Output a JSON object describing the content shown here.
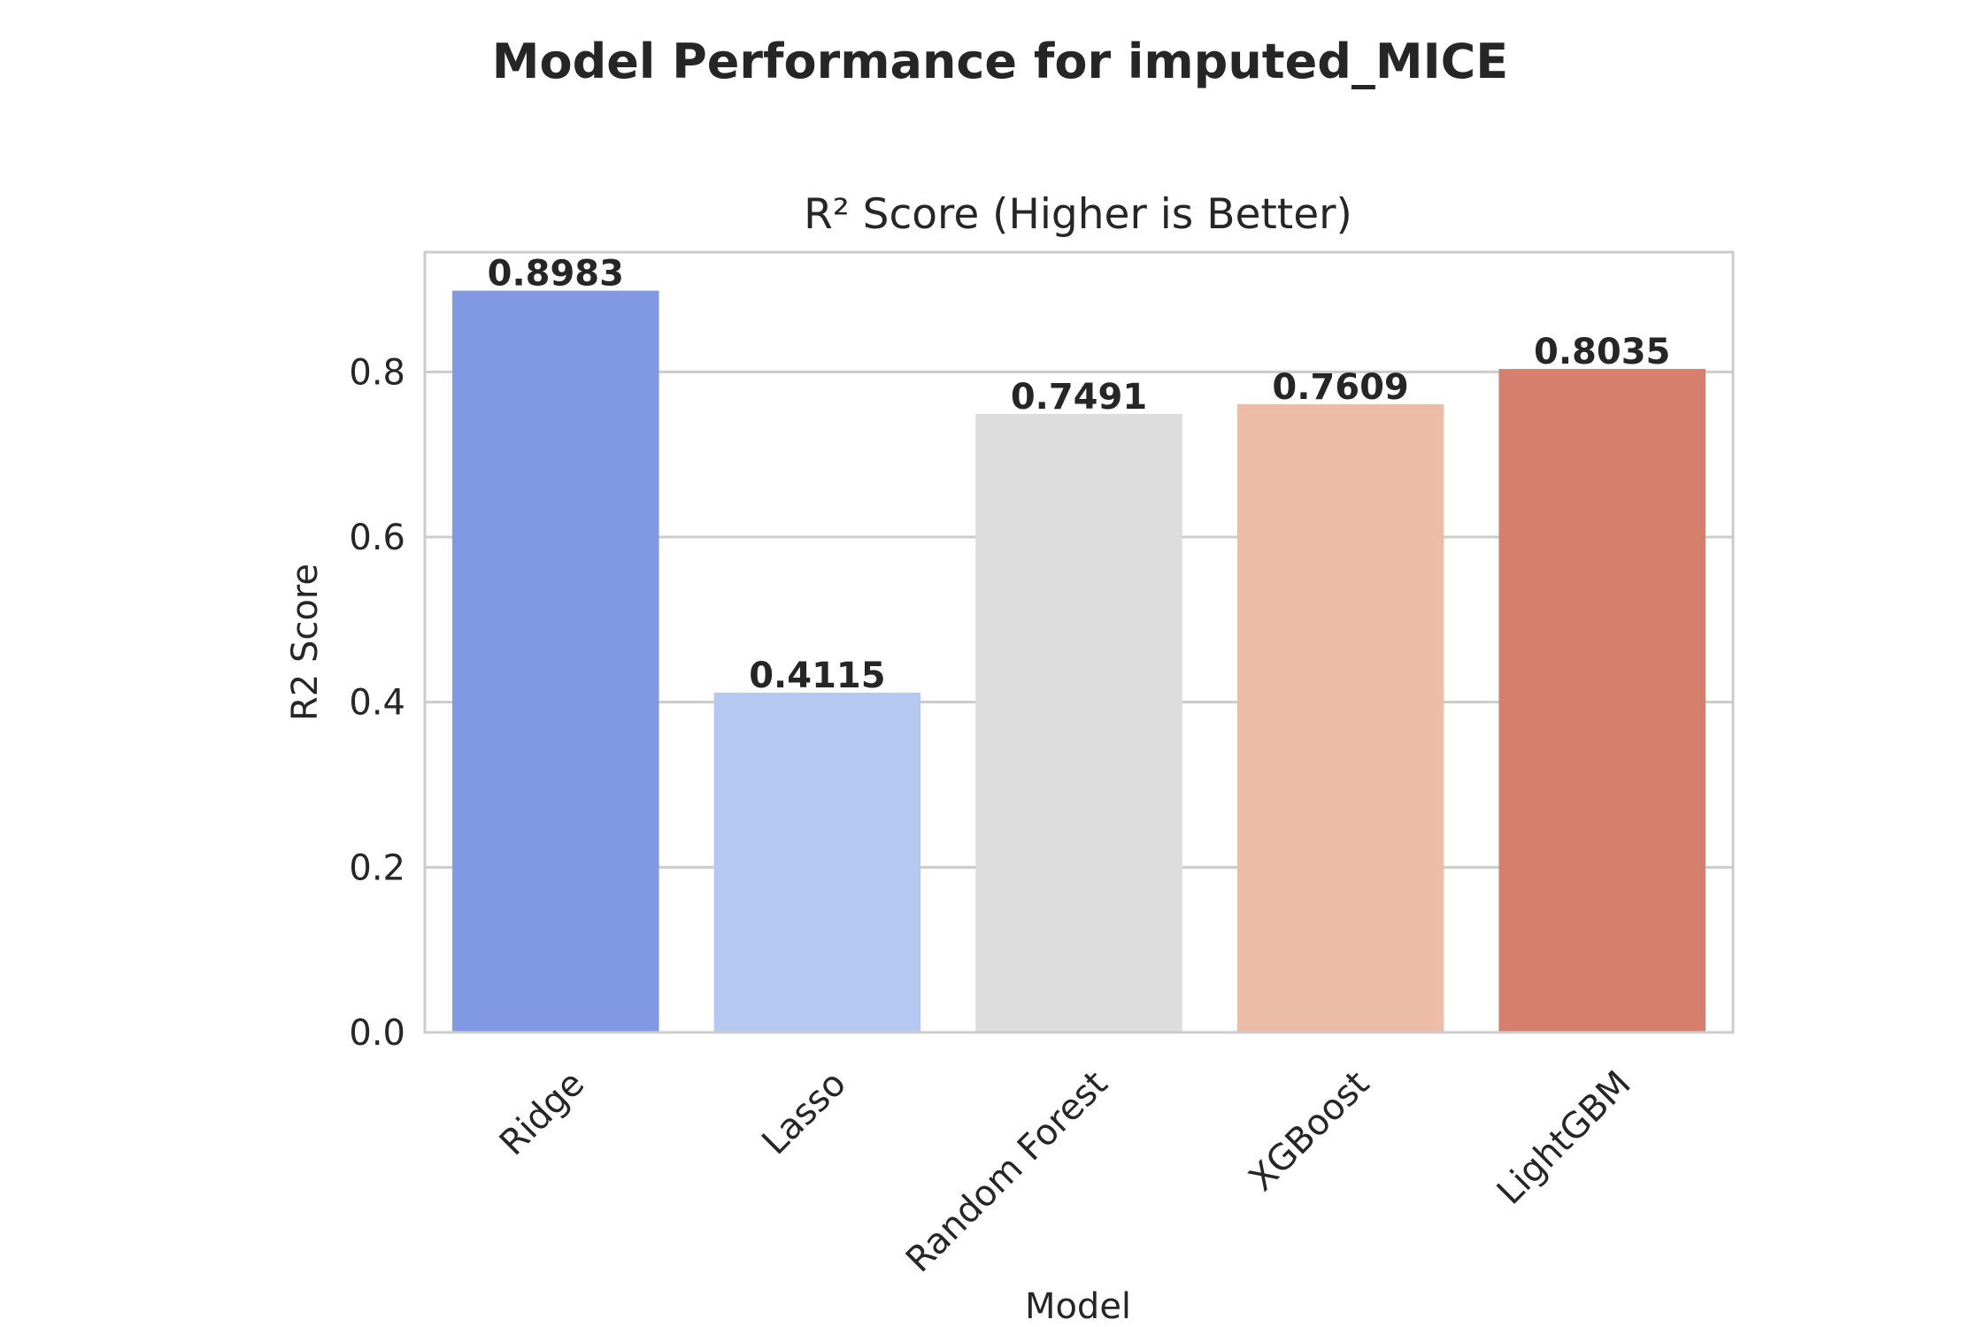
{
  "chart_data": {
    "type": "bar",
    "suptitle": "Model Performance for imputed_MICE",
    "title": "R² Score (Higher is Better)",
    "xlabel": "Model",
    "ylabel": "R2 Score",
    "categories": [
      "Ridge",
      "Lasso",
      "Random Forest",
      "XGBoost",
      "LightGBM"
    ],
    "values": [
      0.8983,
      0.4115,
      0.7491,
      0.7609,
      0.8035
    ],
    "value_labels": [
      "0.8983",
      "0.4115",
      "0.7491",
      "0.7609",
      "0.8035"
    ],
    "colors": [
      "#8099e2",
      "#b5c8f2",
      "#dddddd",
      "#ecbca6",
      "#d67f6c"
    ],
    "ylim": [
      0,
      0.945
    ],
    "yticks": [
      0.0,
      0.2,
      0.4,
      0.6,
      0.8
    ],
    "ytick_labels": [
      "0.0",
      "0.2",
      "0.4",
      "0.6",
      "0.8"
    ],
    "grid": true
  }
}
